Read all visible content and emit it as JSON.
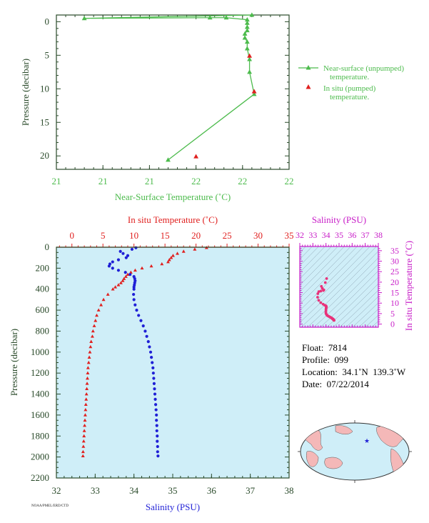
{
  "colors": {
    "green": "#4cbb4c",
    "red": "#e0201f",
    "blue": "#1f1fd6",
    "magenta": "#c81ec8",
    "axis_dark": "#2a4a2a",
    "panel_bg": "#cfeef8"
  },
  "chart_data": [
    {
      "type": "line",
      "name": "top",
      "xlabel": "Near-Surface Temperature (˚C)",
      "ylabel": "Pressure (decibar)",
      "xlim": [
        21.0,
        22.0
      ],
      "ylim": [
        22,
        -1
      ],
      "x_ticks": [
        21.0,
        21.2,
        21.4,
        21.6,
        21.8,
        22.0
      ],
      "x_tick_labels": [
        "21",
        "21",
        "21",
        "22",
        "22",
        "22"
      ],
      "y_ticks": [
        0,
        5,
        10,
        15,
        20
      ],
      "y_tick_labels": [
        "0",
        "5",
        "10",
        "15",
        "20"
      ],
      "legend": [
        {
          "text": "Near-surface (unpumped) temperature.",
          "line1": "Near-surface (unpumped)",
          "line2": "temperature."
        },
        {
          "text": "In situ (pumped) temperature.",
          "line1": "In situ (pumped)",
          "line2": "temperature."
        }
      ],
      "series": [
        {
          "name": "Near-surface (unpumped) temperature.",
          "x": [
            21.84,
            21.12,
            21.66,
            21.73,
            21.82,
            21.82,
            21.82,
            21.82,
            21.81,
            21.81,
            21.82,
            21.82,
            21.83,
            21.83,
            21.85,
            21.48
          ],
          "y": [
            -1.0,
            -0.5,
            -0.6,
            -0.6,
            -0.3,
            0.2,
            0.8,
            1.3,
            1.8,
            2.4,
            3.0,
            4.0,
            5.6,
            7.5,
            10.8,
            20.6
          ]
        },
        {
          "name": "In situ (pumped) temperature.",
          "x": [
            21.83,
            21.85,
            21.6
          ],
          "y": [
            5.1,
            10.4,
            20.1
          ]
        }
      ]
    },
    {
      "type": "scatter",
      "name": "main",
      "xlabel_top": "In situ Temperature (˚C)",
      "xlabel_bottom": "Salinity (PSU)",
      "ylabel": "Pressure (decibar)",
      "temp_lim": [
        -2.5,
        35
      ],
      "sal_lim": [
        32,
        38
      ],
      "ylim": [
        2200,
        0
      ],
      "temp_ticks": [
        0,
        5,
        10,
        15,
        20,
        25,
        30,
        35
      ],
      "temp_tick_labels": [
        "0",
        "5",
        "10",
        "15",
        "20",
        "25",
        "30",
        "35"
      ],
      "sal_ticks": [
        32,
        33,
        34,
        35,
        36,
        37,
        38
      ],
      "sal_tick_labels": [
        "32",
        "33",
        "34",
        "35",
        "36",
        "37",
        "38"
      ],
      "y_ticks": [
        0,
        200,
        400,
        600,
        800,
        1000,
        1200,
        1400,
        1600,
        1800,
        2000,
        2200
      ],
      "y_tick_labels": [
        "0",
        "200",
        "400",
        "600",
        "800",
        "1000",
        "1200",
        "1400",
        "1600",
        "1800",
        "2000",
        "2200"
      ],
      "temperature_profile": {
        "pressure": [
          5,
          20,
          40,
          60,
          80,
          100,
          120,
          140,
          160,
          180,
          200,
          220,
          240,
          260,
          280,
          300,
          320,
          340,
          360,
          380,
          400,
          450,
          500,
          550,
          600,
          650,
          700,
          750,
          800,
          850,
          900,
          950,
          1000,
          1050,
          1100,
          1150,
          1200,
          1250,
          1300,
          1350,
          1400,
          1450,
          1500,
          1550,
          1600,
          1650,
          1700,
          1750,
          1800,
          1850,
          1900,
          1950,
          1990
        ],
        "temperature": [
          21.7,
          19.8,
          18.0,
          17.0,
          16.3,
          16.0,
          15.7,
          15.5,
          14.5,
          12.8,
          11.3,
          10.2,
          9.5,
          9.0,
          8.7,
          8.4,
          8.2,
          7.9,
          7.5,
          7.0,
          6.6,
          5.8,
          5.1,
          4.7,
          4.3,
          4.0,
          3.8,
          3.6,
          3.4,
          3.3,
          3.1,
          3.0,
          2.9,
          2.8,
          2.7,
          2.6,
          2.55,
          2.5,
          2.45,
          2.4,
          2.35,
          2.3,
          2.25,
          2.2,
          2.15,
          2.1,
          2.05,
          2.0,
          1.95,
          1.9,
          1.85,
          1.8,
          1.78
        ]
      },
      "salinity_profile": {
        "pressure": [
          5,
          20,
          40,
          60,
          80,
          100,
          120,
          140,
          160,
          180,
          200,
          220,
          240,
          260,
          280,
          300,
          320,
          340,
          360,
          380,
          400,
          450,
          500,
          550,
          600,
          650,
          700,
          750,
          800,
          850,
          900,
          950,
          1000,
          1050,
          1100,
          1150,
          1200,
          1250,
          1300,
          1350,
          1400,
          1450,
          1500,
          1550,
          1600,
          1650,
          1700,
          1750,
          1800,
          1850,
          1900,
          1950,
          1990
        ],
        "salinity": [
          34.05,
          33.95,
          33.65,
          33.72,
          33.84,
          33.8,
          33.6,
          33.45,
          33.38,
          33.36,
          33.45,
          33.6,
          33.78,
          33.9,
          34.0,
          34.02,
          34.03,
          34.02,
          34.01,
          34.0,
          34.0,
          33.99,
          34.0,
          34.03,
          34.07,
          34.12,
          34.18,
          34.24,
          34.29,
          34.33,
          34.37,
          34.4,
          34.43,
          34.45,
          34.47,
          34.49,
          34.5,
          34.51,
          34.52,
          34.53,
          34.54,
          34.55,
          34.56,
          34.57,
          34.58,
          34.58,
          34.59,
          34.59,
          34.6,
          34.6,
          34.61,
          34.61,
          34.62
        ]
      }
    },
    {
      "type": "scatter",
      "name": "ts",
      "xlabel": "Salinity (PSU)",
      "ylabel": "In situ Temperature (˚C)",
      "xlim": [
        32,
        38
      ],
      "ylim": [
        -1.5,
        37
      ],
      "x_ticks": [
        32,
        33,
        34,
        35,
        36,
        37,
        38
      ],
      "x_tick_labels": [
        "32",
        "33",
        "34",
        "35",
        "36",
        "37",
        "38"
      ],
      "y_ticks": [
        0,
        5,
        10,
        15,
        20,
        25,
        30,
        35
      ],
      "y_tick_labels": [
        "0",
        "5",
        "10",
        "15",
        "20",
        "25",
        "30",
        "35"
      ],
      "salinity": [
        34.05,
        33.95,
        33.65,
        33.72,
        33.84,
        33.8,
        33.6,
        33.45,
        33.38,
        33.36,
        33.45,
        33.6,
        33.78,
        33.9,
        34.0,
        34.02,
        34.03,
        34.02,
        34.01,
        34.0,
        34.0,
        33.99,
        34.0,
        34.03,
        34.07,
        34.12,
        34.18,
        34.24,
        34.29,
        34.33,
        34.37,
        34.4,
        34.43,
        34.45,
        34.47,
        34.49,
        34.5,
        34.51,
        34.52,
        34.53,
        34.54,
        34.55,
        34.56,
        34.57,
        34.58,
        34.58,
        34.59,
        34.59,
        34.6,
        34.6,
        34.61,
        34.61,
        34.62
      ],
      "temperature": [
        21.7,
        19.8,
        18.0,
        17.0,
        16.3,
        16.0,
        15.7,
        15.5,
        14.5,
        12.8,
        11.3,
        10.2,
        9.5,
        9.0,
        8.7,
        8.4,
        8.2,
        7.9,
        7.5,
        7.0,
        6.6,
        5.8,
        5.1,
        4.7,
        4.3,
        4.0,
        3.8,
        3.6,
        3.4,
        3.3,
        3.1,
        3.0,
        2.9,
        2.8,
        2.7,
        2.6,
        2.55,
        2.5,
        2.45,
        2.4,
        2.35,
        2.3,
        2.25,
        2.2,
        2.15,
        2.1,
        2.05,
        2.0,
        1.95,
        1.9,
        1.85,
        1.8,
        1.78
      ]
    },
    {
      "type": "map",
      "name": "location",
      "marker": {
        "lat": 34.1,
        "lon": -139.3
      }
    }
  ],
  "info": {
    "float_label": "Float:",
    "float_value": "7814",
    "profile_label": "Profile:",
    "profile_value": "099",
    "location_label": "Location:",
    "location_value": "34.1˚N  139.3˚W",
    "date_label": "Date:",
    "date_value": "07/22/2014"
  },
  "footnote": "NOAA/PMEL/ERD/CTD"
}
